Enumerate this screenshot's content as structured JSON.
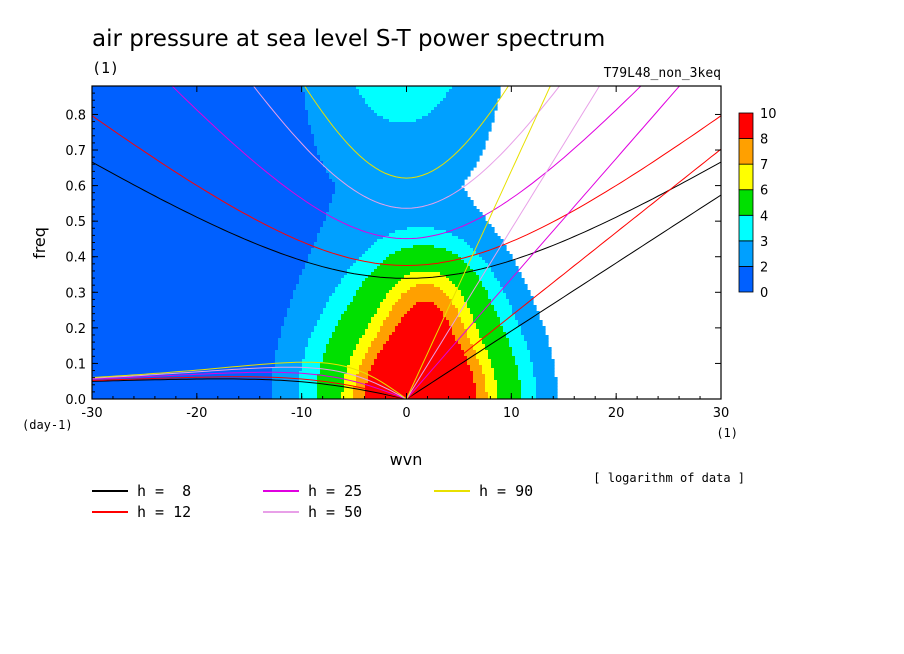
{
  "title": "air pressure at sea level S-T power spectrum",
  "subtitle_left": "(1)",
  "subtitle_right": "T79L48_non_3keq",
  "note": "[ logarithm of data ]",
  "chart_data": {
    "type": "heatmap",
    "xlabel": "wvn",
    "ylabel": "freq",
    "x_unit": "(1)",
    "y_unit": "(day-1)",
    "xlim": [
      -30,
      30
    ],
    "ylim": [
      0,
      0.88
    ],
    "x_ticks": [
      "-30",
      "-20",
      "-10",
      "0",
      "10",
      "20",
      "30"
    ],
    "y_ticks": [
      "0.0",
      "0.1",
      "0.2",
      "0.3",
      "0.4",
      "0.5",
      "0.6",
      "0.7",
      "0.8"
    ],
    "contour_levels": [
      0,
      2,
      3,
      4,
      6,
      7,
      8,
      10
    ],
    "level_labels": [
      "10",
      "8",
      "7",
      "6",
      "4",
      "3",
      "2",
      "0"
    ],
    "level_colors": [
      "#0060ff",
      "#00a0ff",
      "#00ffff",
      "#00e000",
      "#ffff00",
      "#ffa000",
      "#ff0000"
    ],
    "dispersion_curves": [
      {
        "name": "h =  8",
        "h": 8,
        "color": "#000000"
      },
      {
        "name": "h = 12",
        "h": 12,
        "color": "#ff0000"
      },
      {
        "name": "h = 25",
        "h": 25,
        "color": "#e000e0"
      },
      {
        "name": "h = 50",
        "h": 50,
        "color": "#e8a0e8"
      },
      {
        "name": "h = 90",
        "h": 90,
        "color": "#e8e000"
      }
    ]
  }
}
